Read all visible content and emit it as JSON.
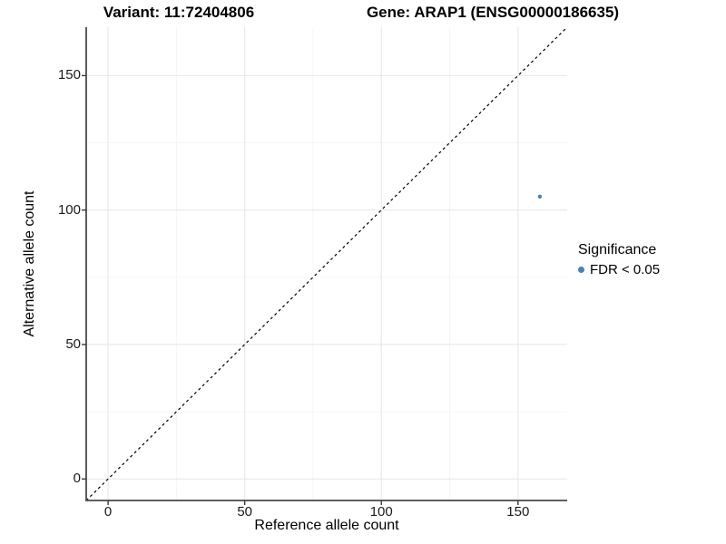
{
  "figure": {
    "title_variant": "Variant: 11:72404806",
    "title_gene": "Gene: ARAP1 (ENSG00000186635)"
  },
  "axes": {
    "x_label": "Reference allele count",
    "y_label": "Alternative allele count"
  },
  "legend": {
    "title": "Significance",
    "items": [
      {
        "label": "FDR < 0.05",
        "color": "#4682B4"
      }
    ]
  },
  "chart_data": {
    "type": "scatter",
    "title": "Variant: 11:72404806 — Gene: ARAP1 (ENSG00000186635)",
    "xlabel": "Reference allele count",
    "ylabel": "Alternative allele count",
    "xlim": [
      -8,
      168
    ],
    "ylim": [
      -8,
      168
    ],
    "x_ticks": [
      0,
      50,
      100,
      150
    ],
    "y_ticks": [
      0,
      50,
      100,
      150
    ],
    "grid": true,
    "legend_position": "right",
    "reference_line": {
      "slope": 1,
      "intercept": 0,
      "style": "dashed",
      "color": "#000000"
    },
    "series": [
      {
        "name": "FDR < 0.05",
        "color": "#4682B4",
        "point_radius": 2.2,
        "points": [
          {
            "x": 158,
            "y": 105
          }
        ]
      }
    ],
    "style_colors": {
      "grid_major": "#e8e8e8",
      "grid_minor": "#f3f3f3",
      "axis_line": "#4a4a4a",
      "tick": "#3a3a3a"
    }
  }
}
